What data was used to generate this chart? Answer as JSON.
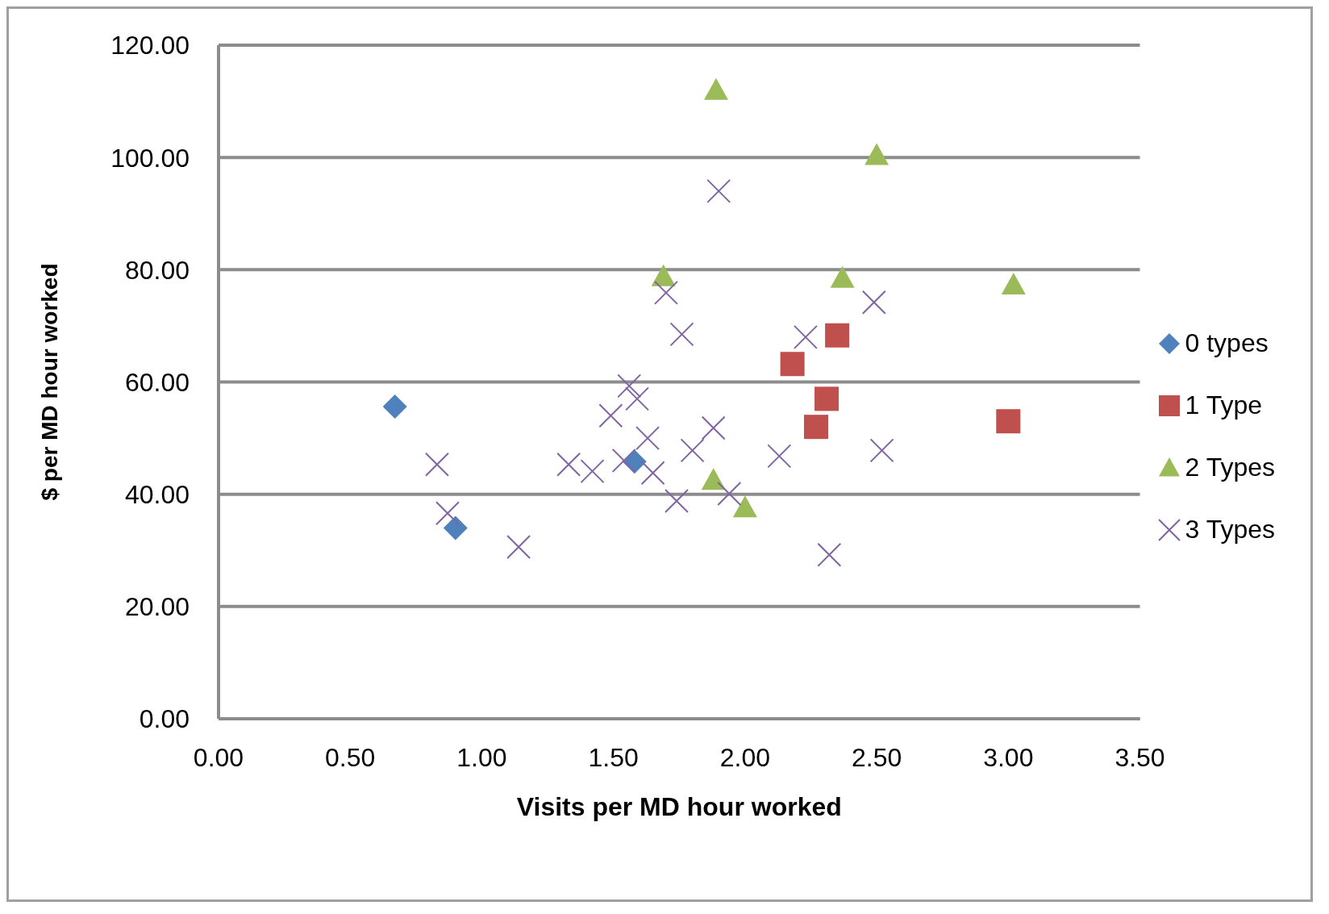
{
  "chart_data": {
    "type": "scatter",
    "xlabel": "Visits per MD hour worked",
    "ylabel": "$ per MD hour worked",
    "xlim": [
      0,
      3.5
    ],
    "xticks": [
      {
        "value": 0,
        "label": "0.00"
      },
      {
        "value": 0.5,
        "label": "0.50"
      },
      {
        "value": 1,
        "label": "1.00"
      },
      {
        "value": 1.5,
        "label": "1.50"
      },
      {
        "value": 2,
        "label": "2.00"
      },
      {
        "value": 2.5,
        "label": "2.50"
      },
      {
        "value": 3,
        "label": "3.00"
      },
      {
        "value": 3.5,
        "label": "3.50"
      }
    ],
    "ylim": [
      0,
      120
    ],
    "yticks": [
      {
        "value": 0,
        "label": "0.00"
      },
      {
        "value": 20,
        "label": "20.00"
      },
      {
        "value": 40,
        "label": "40.00"
      },
      {
        "value": 60,
        "label": "60.00"
      },
      {
        "value": 80,
        "label": "80.00"
      },
      {
        "value": 100,
        "label": "100.00"
      },
      {
        "value": 120,
        "label": "120.00"
      }
    ],
    "grid": "y",
    "legend": "right",
    "series": [
      {
        "name": "0 types",
        "color": "#4f81bd",
        "marker": "diamond",
        "x": [
          0.67,
          0.9,
          1.58
        ],
        "values": [
          55.6,
          34,
          45.8
        ]
      },
      {
        "name": "1 Type",
        "color": "#c0504d",
        "marker": "square",
        "x": [
          2.18,
          2.35,
          2.31,
          2.27,
          3.0
        ],
        "values": [
          63.2,
          68.3,
          57,
          52,
          53
        ]
      },
      {
        "name": "2 Types",
        "color": "#9bbb59",
        "marker": "triangle",
        "x": [
          1.89,
          2.5,
          1.69,
          2.37,
          3.02,
          1.88,
          2.0
        ],
        "values": [
          112,
          100.4,
          78.8,
          78.5,
          77.3,
          42.5,
          37.6
        ]
      },
      {
        "name": "3 Types",
        "color": "#8064a2",
        "marker": "cross",
        "x": [
          1.9,
          1.7,
          2.49,
          1.76,
          2.23,
          1.56,
          1.59,
          1.49,
          1.63,
          1.88,
          0.83,
          1.33,
          1.42,
          1.54,
          1.65,
          1.8,
          2.13,
          2.52,
          1.94,
          1.74,
          0.87,
          1.14,
          2.32
        ],
        "values": [
          94,
          75.9,
          74.2,
          68.5,
          68,
          59.3,
          57,
          54,
          50,
          51.8,
          45.3,
          45.3,
          44.1,
          46,
          43.8,
          47.8,
          46.8,
          47.8,
          40.1,
          38.8,
          36.6,
          30.6,
          29.2
        ]
      }
    ]
  }
}
